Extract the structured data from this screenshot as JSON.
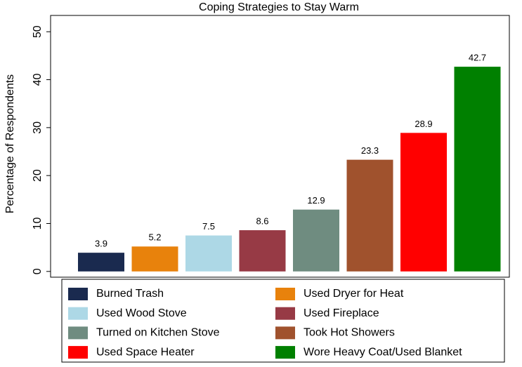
{
  "chart_data": {
    "type": "bar",
    "title": "Coping Strategies to Stay Warm",
    "y_label": "Percentage of Respondents",
    "series": [
      {
        "name": "Burned Trash",
        "color": "#1a2a4f",
        "values": [
          3.9
        ]
      },
      {
        "name": "Used Dryer for Heat",
        "color": "#e8820c",
        "values": [
          5.2
        ]
      },
      {
        "name": "Used Wood Stove",
        "color": "#add8e6",
        "values": [
          7.5
        ]
      },
      {
        "name": "Used Fireplace",
        "color": "#973a45",
        "values": [
          8.6
        ]
      },
      {
        "name": "Turned on Kitchen Stove",
        "color": "#6f8c80",
        "values": [
          12.9
        ]
      },
      {
        "name": "Took Hot Showers",
        "color": "#a0522d",
        "values": [
          23.3
        ]
      },
      {
        "name": "Used Space Heater",
        "color": "#ff0000",
        "values": [
          28.9
        ]
      },
      {
        "name": "Wore Heavy Coat/Used Blanket",
        "color": "#008000",
        "values": [
          42.7
        ]
      }
    ],
    "ylim": [
      -1.2,
      53.4
    ],
    "yticks": [
      0,
      10,
      20,
      30,
      40,
      50
    ],
    "legend": "bottom"
  }
}
